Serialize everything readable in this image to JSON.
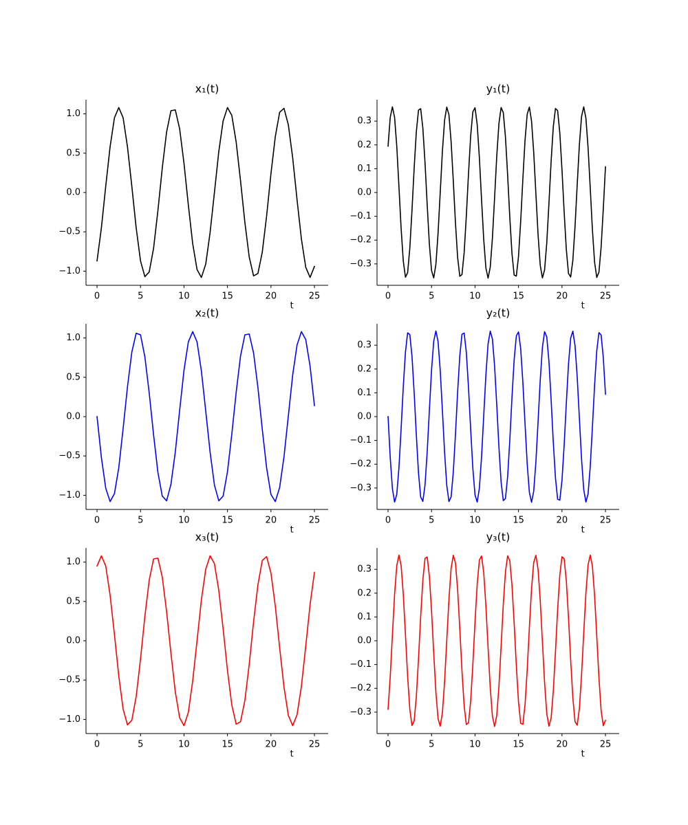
{
  "chart_data": [
    {
      "type": "line",
      "title": "x₁(t)",
      "xlabel": "t",
      "color": "#000000",
      "x": [
        0,
        0.5,
        1,
        1.5,
        2,
        2.5,
        3,
        3.5,
        4,
        4.5,
        5,
        5.5,
        6,
        6.5,
        7,
        7.5,
        8,
        8.5,
        9,
        9.5,
        10,
        10.5,
        11,
        11.5,
        12,
        12.5,
        13,
        13.5,
        14,
        14.5,
        15,
        15.5,
        16,
        16.5,
        17,
        17.5,
        18,
        18.5,
        19,
        19.5,
        20,
        20.5,
        21,
        21.5,
        22,
        22.5,
        23,
        23.5,
        24,
        24.5,
        25
      ],
      "values": [
        -0.87,
        -0.45,
        0.08,
        0.58,
        0.95,
        1.08,
        0.95,
        0.58,
        0.08,
        -0.45,
        -0.87,
        -1.07,
        -1.01,
        -0.71,
        -0.23,
        0.31,
        0.77,
        1.04,
        1.05,
        0.81,
        0.37,
        -0.16,
        -0.65,
        -0.98,
        -1.08,
        -0.91,
        -0.51,
        0,
        0.52,
        0.91,
        1.08,
        0.98,
        0.64,
        0.15,
        -0.38,
        -0.82,
        -1.06,
        -1.03,
        -0.76,
        -0.3,
        0.24,
        0.71,
        1.02,
        1.07,
        0.86,
        0.44,
        -0.09,
        -0.59,
        -0.95,
        -1.08,
        -0.94
      ],
      "xlim": [
        -1.27,
        26.58
      ],
      "ylim": [
        -1.18,
        1.18
      ],
      "xticks": [
        0,
        5,
        10,
        15,
        20,
        25
      ],
      "yticks": [
        {
          "value": -1,
          "label": "−1.0"
        },
        {
          "value": -0.5,
          "label": "−0.5"
        },
        {
          "value": 0,
          "label": "0.0"
        },
        0.5,
        {
          "value": 1,
          "label": "1.0"
        }
      ]
    },
    {
      "type": "line",
      "title": "y₁(t)",
      "xlabel": "t",
      "color": "#000000",
      "x": [
        0,
        0.25,
        0.5,
        0.75,
        1,
        1.25,
        1.5,
        1.75,
        2,
        2.25,
        2.5,
        2.75,
        3,
        3.25,
        3.5,
        3.75,
        4,
        4.25,
        4.5,
        4.75,
        5,
        5.25,
        5.5,
        5.75,
        6,
        6.25,
        6.5,
        6.75,
        7,
        7.25,
        7.5,
        7.75,
        8,
        8.25,
        8.5,
        8.75,
        9,
        9.25,
        9.5,
        9.75,
        10,
        10.25,
        10.5,
        10.75,
        11,
        11.25,
        11.5,
        11.75,
        12,
        12.25,
        12.5,
        12.75,
        13,
        13.25,
        13.5,
        13.75,
        14,
        14.25,
        14.5,
        14.75,
        15,
        15.25,
        15.5,
        15.75,
        16,
        16.25,
        16.5,
        16.75,
        17,
        17.25,
        17.5,
        17.75,
        18,
        18.25,
        18.5,
        18.75,
        19,
        19.25,
        19.5,
        19.75,
        20,
        20.25,
        20.5,
        20.75,
        21,
        21.25,
        21.5,
        21.75,
        22,
        22.25,
        22.5,
        22.75,
        23,
        23.25,
        23.5,
        23.75,
        24,
        24.25,
        24.5,
        24.75,
        25
      ],
      "values": [
        0.195,
        0.316,
        0.36,
        0.316,
        0.195,
        0.025,
        -0.15,
        -0.288,
        -0.356,
        -0.337,
        -0.235,
        -0.076,
        0.102,
        0.255,
        0.346,
        0.352,
        0.271,
        0.125,
        -0.052,
        -0.217,
        -0.328,
        -0.359,
        -0.302,
        -0.171,
        0.002,
        0.174,
        0.304,
        0.359,
        0.327,
        0.214,
        0.049,
        -0.128,
        -0.273,
        -0.352,
        -0.345,
        -0.253,
        -0.099,
        0.079,
        0.238,
        0.339,
        0.356,
        0.286,
        0.147,
        -0.029,
        -0.197,
        -0.317,
        -0.36,
        -0.314,
        -0.192,
        -0.022,
        0.153,
        0.29,
        0.357,
        0.336,
        0.233,
        0.073,
        -0.105,
        -0.257,
        -0.347,
        -0.351,
        -0.269,
        -0.122,
        0.056,
        0.219,
        0.329,
        0.359,
        0.3,
        0.168,
        -0.005,
        -0.177,
        -0.306,
        -0.359,
        -0.325,
        -0.212,
        -0.046,
        0.131,
        0.276,
        0.353,
        0.344,
        0.251,
        0.096,
        -0.082,
        -0.24,
        -0.34,
        -0.355,
        -0.285,
        -0.144,
        0.032,
        0.2,
        0.319,
        0.36,
        0.313,
        0.189,
        0.019,
        -0.156,
        -0.293,
        -0.357,
        -0.335,
        -0.23,
        -0.07,
        0.108
      ],
      "xlim": [
        -1.27,
        26.58
      ],
      "ylim": [
        -0.39,
        0.39
      ],
      "xticks": [
        0,
        5,
        10,
        15,
        20,
        25
      ],
      "yticks": [
        {
          "value": -0.3,
          "label": "−0.3"
        },
        {
          "value": -0.2,
          "label": "−0.2"
        },
        {
          "value": -0.1,
          "label": "−0.1"
        },
        {
          "value": 0,
          "label": "0.0"
        },
        0.1,
        0.2,
        0.3
      ]
    },
    {
      "type": "line",
      "title": "x₂(t)",
      "xlabel": "t",
      "color": "#0000ff",
      "x": [
        0,
        0.5,
        1,
        1.5,
        2,
        2.5,
        3,
        3.5,
        4,
        4.5,
        5,
        5.5,
        6,
        6.5,
        7,
        7.5,
        8,
        8.5,
        9,
        9.5,
        10,
        10.5,
        11,
        11.5,
        12,
        12.5,
        13,
        13.5,
        14,
        14.5,
        15,
        15.5,
        16,
        16.5,
        17,
        17.5,
        18,
        18.5,
        19,
        19.5,
        20,
        20.5,
        21,
        21.5,
        22,
        22.5,
        23,
        23.5,
        24,
        24.5,
        25
      ],
      "values": [
        0,
        -0.52,
        -0.91,
        -1.08,
        -0.98,
        -0.65,
        -0.15,
        0.38,
        0.82,
        1.06,
        1.04,
        0.76,
        0.3,
        -0.23,
        -0.71,
        -1.01,
        -1.07,
        -0.86,
        -0.45,
        0.08,
        0.59,
        0.95,
        1.08,
        0.95,
        0.58,
        0.07,
        -0.45,
        -0.87,
        -1.07,
        -1.01,
        -0.7,
        -0.22,
        0.31,
        0.77,
        1.04,
        1.05,
        0.81,
        0.37,
        -0.16,
        -0.65,
        -0.99,
        -1.08,
        -0.9,
        -0.51,
        0.01,
        0.53,
        0.91,
        1.08,
        0.98,
        0.64,
        0.14
      ],
      "xlim": [
        -1.27,
        26.58
      ],
      "ylim": [
        -1.18,
        1.18
      ],
      "xticks": [
        0,
        5,
        10,
        15,
        20,
        25
      ],
      "yticks": [
        {
          "value": -1,
          "label": "−1.0"
        },
        {
          "value": -0.5,
          "label": "−0.5"
        },
        {
          "value": 0,
          "label": "0.0"
        },
        0.5,
        {
          "value": 1,
          "label": "1.0"
        }
      ]
    },
    {
      "type": "line",
      "title": "y₂(t)",
      "xlabel": "t",
      "color": "#0000ff",
      "x": [
        0,
        0.25,
        0.5,
        0.75,
        1,
        1.25,
        1.5,
        1.75,
        2,
        2.25,
        2.5,
        2.75,
        3,
        3.25,
        3.5,
        3.75,
        4,
        4.25,
        4.5,
        4.75,
        5,
        5.25,
        5.5,
        5.75,
        6,
        6.25,
        6.5,
        6.75,
        7,
        7.25,
        7.5,
        7.75,
        8,
        8.25,
        8.5,
        8.75,
        9,
        9.25,
        9.5,
        9.75,
        10,
        10.25,
        10.5,
        10.75,
        11,
        11.25,
        11.5,
        11.75,
        12,
        12.25,
        12.5,
        12.75,
        13,
        13.25,
        13.5,
        13.75,
        14,
        14.25,
        14.5,
        14.75,
        15,
        15.25,
        15.5,
        15.75,
        16,
        16.25,
        16.5,
        16.75,
        17,
        17.25,
        17.5,
        17.75,
        18,
        18.25,
        18.5,
        18.75,
        19,
        19.25,
        19.5,
        19.75,
        20,
        20.25,
        20.5,
        20.75,
        21,
        21.25,
        21.5,
        21.75,
        22,
        22.25,
        22.5,
        22.75,
        23,
        23.25,
        23.5,
        23.75,
        24,
        24.25,
        24.5,
        24.75,
        25
      ],
      "values": [
        0,
        -0.173,
        -0.303,
        -0.359,
        -0.327,
        -0.215,
        -0.051,
        0.126,
        0.272,
        0.352,
        0.345,
        0.254,
        0.101,
        -0.077,
        -0.237,
        -0.338,
        -0.356,
        -0.287,
        -0.148,
        0.027,
        0.196,
        0.317,
        0.36,
        0.315,
        0.193,
        0.024,
        -0.151,
        -0.289,
        -0.357,
        -0.337,
        -0.234,
        -0.074,
        0.104,
        0.256,
        0.346,
        0.351,
        0.27,
        0.122,
        -0.054,
        -0.218,
        -0.329,
        -0.359,
        -0.301,
        -0.17,
        0.003,
        0.175,
        0.305,
        0.359,
        0.326,
        0.213,
        0.048,
        -0.129,
        -0.275,
        -0.353,
        -0.344,
        -0.252,
        -0.098,
        0.081,
        0.239,
        0.339,
        0.356,
        0.286,
        0.145,
        -0.03,
        -0.199,
        -0.318,
        -0.36,
        -0.313,
        -0.19,
        -0.021,
        0.154,
        0.291,
        0.357,
        0.335,
        0.232,
        0.071,
        -0.107,
        -0.258,
        -0.347,
        -0.351,
        -0.268,
        -0.12,
        0.057,
        0.221,
        0.33,
        0.359,
        0.299,
        0.167,
        -0.006,
        -0.178,
        -0.306,
        -0.359,
        -0.325,
        -0.21,
        -0.044,
        0.132,
        0.277,
        0.353,
        0.343,
        0.249,
        0.094
      ],
      "xlim": [
        -1.27,
        26.58
      ],
      "ylim": [
        -0.39,
        0.39
      ],
      "xticks": [
        0,
        5,
        10,
        15,
        20,
        25
      ],
      "yticks": [
        {
          "value": -0.3,
          "label": "−0.3"
        },
        {
          "value": -0.2,
          "label": "−0.2"
        },
        {
          "value": -0.1,
          "label": "−0.1"
        },
        {
          "value": 0,
          "label": "0.0"
        },
        0.1,
        0.2,
        0.3
      ]
    },
    {
      "type": "line",
      "title": "x₃(t)",
      "xlabel": "t",
      "color": "#ff0000",
      "x": [
        0,
        0.5,
        1,
        1.5,
        2,
        2.5,
        3,
        3.5,
        4,
        4.5,
        5,
        5.5,
        6,
        6.5,
        7,
        7.5,
        8,
        8.5,
        9,
        9.5,
        10,
        10.5,
        11,
        11.5,
        12,
        12.5,
        13,
        13.5,
        14,
        14.5,
        15,
        15.5,
        16,
        16.5,
        17,
        17.5,
        18,
        18.5,
        19,
        19.5,
        20,
        20.5,
        21,
        21.5,
        22,
        22.5,
        23,
        23.5,
        24,
        24.5,
        25
      ],
      "values": [
        0.95,
        1.08,
        0.95,
        0.58,
        0.08,
        -0.45,
        -0.87,
        -1.07,
        -1.01,
        -0.71,
        -0.23,
        0.31,
        0.77,
        1.04,
        1.05,
        0.81,
        0.37,
        -0.16,
        -0.65,
        -0.98,
        -1.08,
        -0.91,
        -0.51,
        0,
        0.52,
        0.91,
        1.08,
        0.98,
        0.64,
        0.15,
        -0.38,
        -0.82,
        -1.06,
        -1.03,
        -0.76,
        -0.3,
        0.24,
        0.71,
        1.02,
        1.07,
        0.86,
        0.44,
        -0.09,
        -0.59,
        -0.95,
        -1.08,
        -0.94,
        -0.58,
        -0.07,
        0.46,
        0.87
      ],
      "xlim": [
        -1.27,
        26.58
      ],
      "ylim": [
        -1.18,
        1.18
      ],
      "xticks": [
        0,
        5,
        10,
        15,
        20,
        25
      ],
      "yticks": [
        {
          "value": -1,
          "label": "−1.0"
        },
        {
          "value": -0.5,
          "label": "−0.5"
        },
        {
          "value": 0,
          "label": "0.0"
        },
        0.5,
        {
          "value": 1,
          "label": "1.0"
        }
      ]
    },
    {
      "type": "line",
      "title": "y₃(t)",
      "xlabel": "t",
      "color": "#ff0000",
      "x": [
        0,
        0.25,
        0.5,
        0.75,
        1,
        1.25,
        1.5,
        1.75,
        2,
        2.25,
        2.5,
        2.75,
        3,
        3.25,
        3.5,
        3.75,
        4,
        4.25,
        4.5,
        4.75,
        5,
        5.25,
        5.5,
        5.75,
        6,
        6.25,
        6.5,
        6.75,
        7,
        7.25,
        7.5,
        7.75,
        8,
        8.25,
        8.5,
        8.75,
        9,
        9.25,
        9.5,
        9.75,
        10,
        10.25,
        10.5,
        10.75,
        11,
        11.25,
        11.5,
        11.75,
        12,
        12.25,
        12.5,
        12.75,
        13,
        13.25,
        13.5,
        13.75,
        14,
        14.25,
        14.5,
        14.75,
        15,
        15.25,
        15.5,
        15.75,
        16,
        16.25,
        16.5,
        16.75,
        17,
        17.25,
        17.5,
        17.75,
        18,
        18.25,
        18.5,
        18.75,
        19,
        19.25,
        19.5,
        19.75,
        20,
        20.25,
        20.5,
        20.75,
        21,
        21.25,
        21.5,
        21.75,
        22,
        22.25,
        22.5,
        22.75,
        23,
        23.25,
        23.5,
        23.75,
        24,
        24.25,
        24.5,
        24.75,
        25
      ],
      "values": [
        -0.288,
        -0.15,
        0.025,
        0.195,
        0.316,
        0.36,
        0.316,
        0.195,
        0.025,
        -0.15,
        -0.288,
        -0.356,
        -0.337,
        -0.235,
        -0.076,
        0.102,
        0.255,
        0.346,
        0.352,
        0.271,
        0.125,
        -0.052,
        -0.217,
        -0.328,
        -0.359,
        -0.302,
        -0.171,
        0.002,
        0.174,
        0.304,
        0.359,
        0.327,
        0.214,
        0.049,
        -0.128,
        -0.273,
        -0.352,
        -0.345,
        -0.253,
        -0.099,
        0.079,
        0.238,
        0.339,
        0.356,
        0.286,
        0.147,
        -0.029,
        -0.197,
        -0.317,
        -0.36,
        -0.314,
        -0.192,
        -0.022,
        0.153,
        0.29,
        0.357,
        0.336,
        0.233,
        0.073,
        -0.105,
        -0.257,
        -0.347,
        -0.351,
        -0.269,
        -0.122,
        0.056,
        0.219,
        0.329,
        0.359,
        0.3,
        0.168,
        -0.005,
        -0.177,
        -0.306,
        -0.359,
        -0.325,
        -0.212,
        -0.046,
        0.131,
        0.276,
        0.353,
        0.344,
        0.251,
        0.096,
        -0.082,
        -0.24,
        -0.34,
        -0.355,
        -0.285,
        -0.144,
        0.032,
        0.2,
        0.319,
        0.36,
        0.313,
        0.189,
        0.019,
        -0.156,
        -0.293,
        -0.357,
        -0.335
      ],
      "xlim": [
        -1.27,
        26.58
      ],
      "ylim": [
        -0.39,
        0.39
      ],
      "xticks": [
        0,
        5,
        10,
        15,
        20,
        25
      ],
      "yticks": [
        {
          "value": -0.3,
          "label": "−0.3"
        },
        {
          "value": -0.2,
          "label": "−0.2"
        },
        {
          "value": -0.1,
          "label": "−0.1"
        },
        {
          "value": 0,
          "label": "0.0"
        },
        0.1,
        0.2,
        0.3
      ]
    }
  ]
}
